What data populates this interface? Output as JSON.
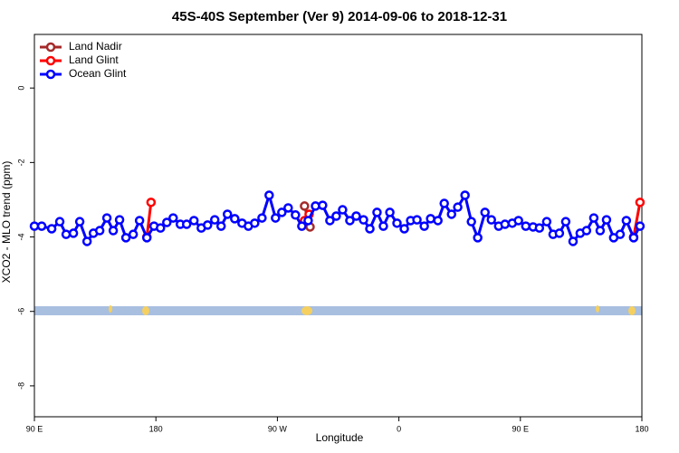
{
  "chart_data": {
    "type": "line",
    "title": "45S-40S September (Ver 9)   2014-09-06 to 2018-12-31",
    "x_label": "Longitude",
    "y_label": "XCO2 - MLO trend (ppm)",
    "xlim": [
      90,
      540
    ],
    "xticks": [
      {
        "value": 90,
        "label": "90 E"
      },
      {
        "value": 180,
        "label": "180"
      },
      {
        "value": 270,
        "label": "90 W"
      },
      {
        "value": 360,
        "label": "0"
      },
      {
        "value": 450,
        "label": "90 E"
      },
      {
        "value": 540,
        "label": "180"
      }
    ],
    "ylim": [
      -8.83,
      1.44
    ],
    "yticks": [
      0,
      -2,
      -4,
      -6,
      -8
    ],
    "legend": "top-left",
    "series": [
      {
        "name": "Land Nadir",
        "color": "#a52a2a",
        "x": [
          290.1,
          294.2
        ],
        "values": [
          -3.17,
          -3.73
        ]
      },
      {
        "name": "Land Glint",
        "color": "#ff0000",
        "x": [
          173.3,
          176.4,
          null,
          290.1,
          293.5,
          null,
          533.9,
          538.6
        ],
        "values": [
          -4.0,
          -3.07,
          null,
          -3.56,
          -3.39,
          null,
          -4.0,
          -3.07
        ]
      },
      {
        "name": "Ocean Glint",
        "color": "#0000ff",
        "x": [
          90,
          95.4,
          102.8,
          108.8,
          113.5,
          118.9,
          123.6,
          129,
          133.7,
          138.4,
          143.7,
          148.4,
          153.1,
          157.8,
          163.2,
          167.9,
          173.3,
          178.6,
          183.4,
          188.1,
          192.8,
          198.1,
          202.8,
          208.2,
          213.6,
          218.3,
          223.6,
          228.3,
          233,
          238.4,
          243.8,
          248.5,
          253.2,
          258.6,
          263.9,
          268.6,
          273.3,
          278,
          283.4,
          288.1,
          292.8,
          298.2,
          303.5,
          308.9,
          313.6,
          318.3,
          323.7,
          328.4,
          333.8,
          338.5,
          343.8,
          348.5,
          353.3,
          358.6,
          364,
          368.7,
          373.4,
          378.8,
          383.5,
          388.9,
          393.6,
          399,
          403.6,
          409,
          413.7,
          418.4,
          423.8,
          428.5,
          433.9,
          438.6,
          444,
          448.6,
          454,
          459.4,
          464.1,
          469.5,
          474.2,
          478.9,
          483.6,
          489,
          494.3,
          499,
          504.4,
          509.1,
          513.8,
          519.1,
          523.9,
          528.5,
          533.9,
          538.6
        ],
        "values": [
          -3.71,
          -3.71,
          -3.78,
          -3.59,
          -3.93,
          -3.9,
          -3.59,
          -4.12,
          -3.9,
          -3.83,
          -3.49,
          -3.83,
          -3.54,
          -4.02,
          -3.93,
          -3.56,
          -4.02,
          -3.71,
          -3.76,
          -3.61,
          -3.49,
          -3.66,
          -3.66,
          -3.56,
          -3.76,
          -3.68,
          -3.54,
          -3.71,
          -3.39,
          -3.51,
          -3.63,
          -3.71,
          -3.63,
          -3.49,
          -2.88,
          -3.49,
          -3.34,
          -3.22,
          -3.41,
          -3.71,
          -3.56,
          -3.17,
          -3.15,
          -3.56,
          -3.44,
          -3.27,
          -3.56,
          -3.44,
          -3.54,
          -3.78,
          -3.34,
          -3.71,
          -3.34,
          -3.63,
          -3.78,
          -3.56,
          -3.54,
          -3.71,
          -3.51,
          -3.56,
          -3.1,
          -3.39,
          -3.2,
          -2.88,
          -3.59,
          -4.02,
          -3.34,
          -3.54,
          -3.71,
          -3.66,
          -3.63,
          -3.56,
          -3.71,
          -3.73,
          -3.76,
          -3.59,
          -3.93,
          -3.9,
          -3.59,
          -4.12,
          -3.9,
          -3.83,
          -3.49,
          -3.83,
          -3.54,
          -4.02,
          -3.93,
          -3.56,
          -4.02,
          -3.71
        ]
      }
    ]
  }
}
